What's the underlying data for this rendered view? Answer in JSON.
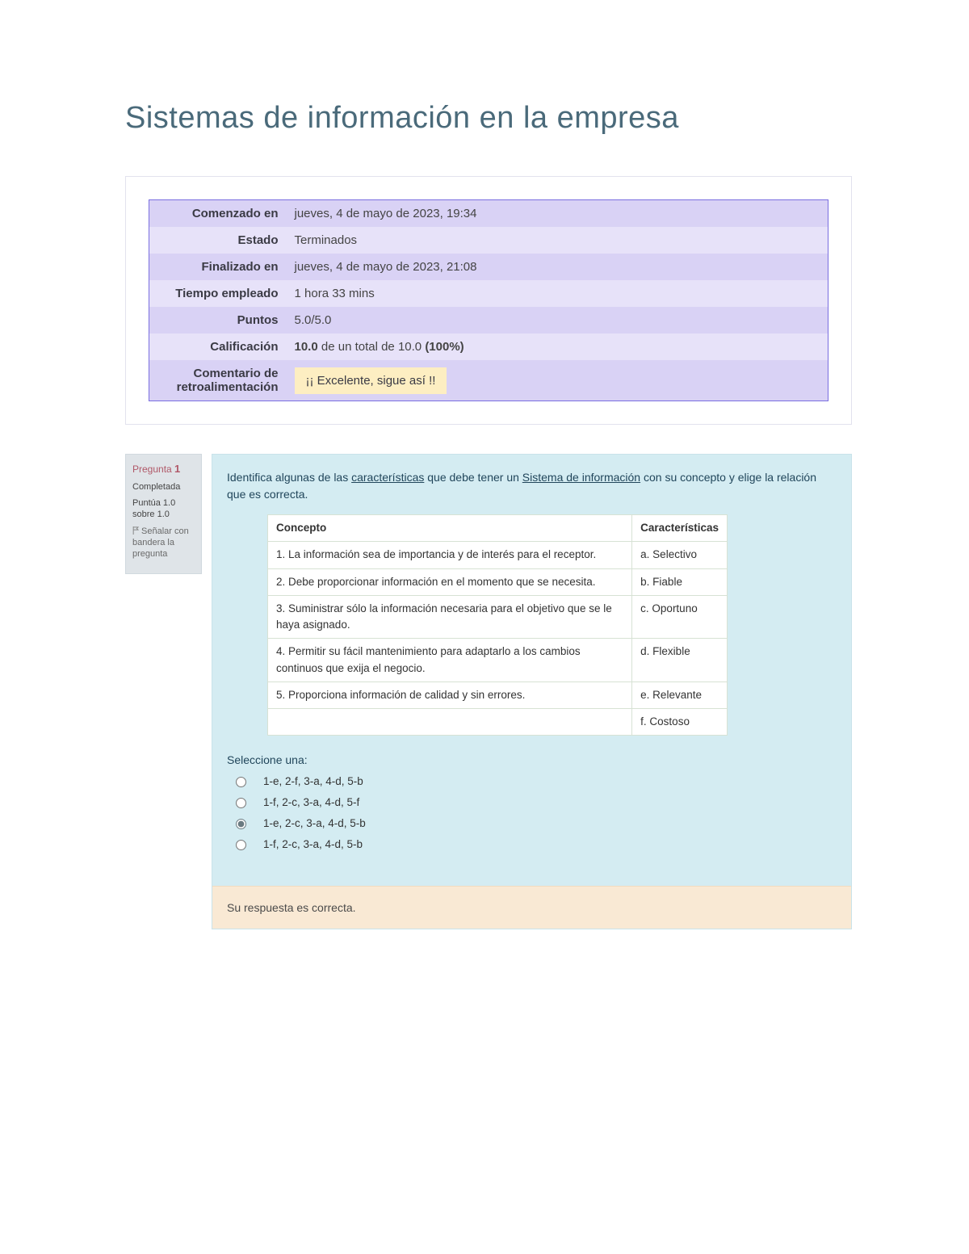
{
  "title": "Sistemas de información en la empresa",
  "summary": {
    "rows": [
      {
        "label": "Comenzado en",
        "value": "jueves, 4 de mayo de 2023, 19:34"
      },
      {
        "label": "Estado",
        "value": "Terminados"
      },
      {
        "label": "Finalizado en",
        "value": "jueves, 4 de mayo de 2023, 21:08"
      },
      {
        "label": "Tiempo empleado",
        "value": "1 hora 33 mins"
      },
      {
        "label": "Puntos",
        "value": "5.0/5.0"
      }
    ],
    "grade_label": "Calificación",
    "grade_score": "10.0",
    "grade_mid": " de un total de 10.0 ",
    "grade_percent": "(100%)",
    "feedback_label": "Comentario de retroalimentación",
    "feedback_text": "¡¡ Excelente, sigue así !!"
  },
  "question": {
    "label_prefix": "Pregunta ",
    "number": "1",
    "status": "Completada",
    "mark": "Puntúa 1.0 sobre 1.0",
    "flag_text": "Señalar con bandera la pregunta",
    "prompt_pre": "Identifica algunas de las ",
    "prompt_u1": "características",
    "prompt_mid": " que debe tener un ",
    "prompt_u2": "Sistema de información",
    "prompt_post": " con su concepto y elige la relación que es correcta.",
    "table": {
      "col1": "Concepto",
      "col2": "Características",
      "rows": [
        {
          "c": "1. La información sea de importancia y de interés para el receptor.",
          "k": "a. Selectivo"
        },
        {
          "c": "2. Debe proporcionar información en el momento que se necesita.",
          "k": "b. Fiable"
        },
        {
          "c": "3. Suministrar sólo la información necesaria para el objetivo que se le haya asignado.",
          "k": "c. Oportuno"
        },
        {
          "c": "4. Permitir su fácil mantenimiento para adaptarlo a los cambios continuos que exija el negocio.",
          "k": "d. Flexible"
        },
        {
          "c": "5. Proporciona información de calidad y sin errores.",
          "k": "e. Relevante"
        },
        {
          "c": "",
          "k": "f. Costoso"
        }
      ]
    },
    "select_label": "Seleccione una:",
    "options": [
      "1-e, 2-f, 3-a, 4-d, 5-b",
      "1-f, 2-c, 3-a, 4-d, 5-f",
      "1-e, 2-c, 3-a, 4-d, 5-b",
      "1-f, 2-c, 3-a, 4-d, 5-b"
    ],
    "selected_index": 2,
    "feedback": "Su respuesta es correcta."
  }
}
